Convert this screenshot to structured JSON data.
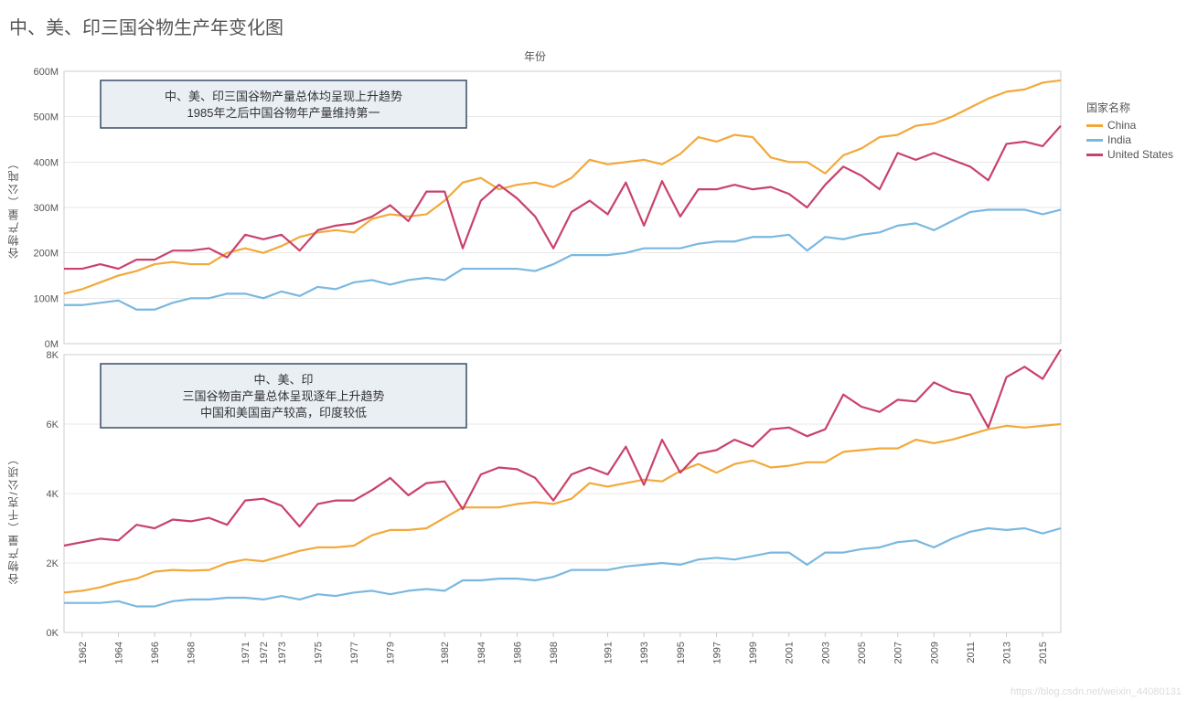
{
  "title": "中、美、印三国谷物生产年变化图",
  "x_axis_label": "年份",
  "legend_title": "国家名称",
  "watermark": "https://blog.csdn.net/weixin_44080131",
  "colors": {
    "china": "#f2a93b",
    "india": "#7ab8e0",
    "us": "#c9426b",
    "grid": "#d0d0d0",
    "border": "#cccccc",
    "annot_border": "#3a4d66",
    "annot_fill": "#eaeff4",
    "background": "#ffffff"
  },
  "series_labels": {
    "china": "China",
    "india": "India",
    "us": "United States"
  },
  "chart1": {
    "ylabel": "谷物产量（公吨）",
    "ylim": [
      0,
      600
    ],
    "ytick_step": 100,
    "ytick_suffix": "M",
    "years": [
      1961,
      1962,
      1963,
      1964,
      1965,
      1966,
      1967,
      1968,
      1969,
      1970,
      1971,
      1972,
      1973,
      1974,
      1975,
      1976,
      1977,
      1978,
      1979,
      1980,
      1981,
      1982,
      1983,
      1984,
      1985,
      1986,
      1987,
      1988,
      1989,
      1990,
      1991,
      1992,
      1993,
      1994,
      1995,
      1996,
      1997,
      1998,
      1999,
      2000,
      2001,
      2002,
      2003,
      2004,
      2005,
      2006,
      2007,
      2008,
      2009,
      2010,
      2011,
      2012,
      2013,
      2014,
      2015,
      2016
    ],
    "china": [
      110,
      120,
      135,
      150,
      160,
      175,
      180,
      175,
      175,
      200,
      210,
      200,
      215,
      235,
      245,
      250,
      245,
      275,
      285,
      280,
      285,
      315,
      355,
      365,
      340,
      350,
      355,
      345,
      365,
      405,
      395,
      400,
      405,
      395,
      418,
      455,
      445,
      460,
      455,
      410,
      400,
      400,
      375,
      415,
      430,
      455,
      460,
      480,
      485,
      500,
      520,
      540,
      555,
      560,
      575,
      580
    ],
    "india": [
      85,
      85,
      90,
      95,
      75,
      75,
      90,
      100,
      100,
      110,
      110,
      100,
      115,
      105,
      125,
      120,
      135,
      140,
      130,
      140,
      145,
      140,
      165,
      165,
      165,
      165,
      160,
      175,
      195,
      195,
      195,
      200,
      210,
      210,
      210,
      220,
      225,
      225,
      235,
      235,
      240,
      205,
      235,
      230,
      240,
      245,
      260,
      265,
      250,
      270,
      290,
      295,
      295,
      295,
      285,
      295
    ],
    "us": [
      165,
      165,
      175,
      165,
      185,
      185,
      205,
      205,
      210,
      190,
      240,
      230,
      240,
      205,
      250,
      260,
      265,
      280,
      305,
      270,
      335,
      335,
      210,
      315,
      350,
      320,
      280,
      210,
      290,
      315,
      285,
      355,
      260,
      358,
      280,
      340,
      340,
      350,
      340,
      345,
      330,
      300,
      350,
      390,
      370,
      340,
      420,
      405,
      420,
      405,
      390,
      360,
      440,
      445,
      435,
      480
    ],
    "annotation": {
      "line1": "中、美、印三国谷物产量总体均呈现上升趋势",
      "line2": "1985年之后中国谷物年产量维持第一"
    }
  },
  "chart2": {
    "ylabel": "谷物产量（千克/公顷）",
    "ylim": [
      0,
      8
    ],
    "ytick_step": 2,
    "ytick_suffix": "K",
    "years": [
      1961,
      1962,
      1963,
      1964,
      1965,
      1966,
      1967,
      1968,
      1969,
      1970,
      1971,
      1972,
      1973,
      1974,
      1975,
      1976,
      1977,
      1978,
      1979,
      1980,
      1981,
      1982,
      1983,
      1984,
      1985,
      1986,
      1987,
      1988,
      1989,
      1990,
      1991,
      1992,
      1993,
      1994,
      1995,
      1996,
      1997,
      1998,
      1999,
      2000,
      2001,
      2002,
      2003,
      2004,
      2005,
      2006,
      2007,
      2008,
      2009,
      2010,
      2011,
      2012,
      2013,
      2014,
      2015,
      2016
    ],
    "china": [
      1.15,
      1.2,
      1.3,
      1.45,
      1.55,
      1.75,
      1.8,
      1.78,
      1.8,
      2.0,
      2.1,
      2.05,
      2.2,
      2.35,
      2.45,
      2.45,
      2.5,
      2.8,
      2.95,
      2.95,
      3.0,
      3.3,
      3.6,
      3.6,
      3.6,
      3.7,
      3.75,
      3.7,
      3.85,
      4.3,
      4.2,
      4.3,
      4.4,
      4.35,
      4.65,
      4.85,
      4.6,
      4.85,
      4.95,
      4.75,
      4.8,
      4.9,
      4.9,
      5.2,
      5.25,
      5.3,
      5.3,
      5.55,
      5.45,
      5.55,
      5.7,
      5.85,
      5.95,
      5.9,
      5.95,
      6.0
    ],
    "india": [
      0.85,
      0.85,
      0.85,
      0.9,
      0.75,
      0.75,
      0.9,
      0.95,
      0.95,
      1.0,
      1.0,
      0.95,
      1.05,
      0.95,
      1.1,
      1.05,
      1.15,
      1.2,
      1.1,
      1.2,
      1.25,
      1.2,
      1.5,
      1.5,
      1.55,
      1.55,
      1.5,
      1.6,
      1.8,
      1.8,
      1.8,
      1.9,
      1.95,
      2.0,
      1.95,
      2.1,
      2.15,
      2.1,
      2.2,
      2.3,
      2.3,
      1.95,
      2.3,
      2.3,
      2.4,
      2.45,
      2.6,
      2.65,
      2.45,
      2.7,
      2.9,
      3.0,
      2.95,
      3.0,
      2.85,
      3.0
    ],
    "us": [
      2.5,
      2.6,
      2.7,
      2.65,
      3.1,
      3.0,
      3.25,
      3.2,
      3.3,
      3.1,
      3.8,
      3.85,
      3.65,
      3.05,
      3.7,
      3.8,
      3.8,
      4.1,
      4.45,
      3.95,
      4.3,
      4.35,
      3.55,
      4.55,
      4.75,
      4.7,
      4.45,
      3.8,
      4.55,
      4.75,
      4.55,
      5.35,
      4.25,
      5.55,
      4.6,
      5.15,
      5.25,
      5.55,
      5.35,
      5.85,
      5.9,
      5.65,
      5.85,
      6.85,
      6.5,
      6.35,
      6.7,
      6.65,
      7.2,
      6.95,
      6.85,
      5.9,
      7.35,
      7.65,
      7.3,
      8.15
    ],
    "annotation": {
      "line1": "中、美、印",
      "line2": "三国谷物亩产量总体呈现逐年上升趋势",
      "line3": "中国和美国亩产较高，印度较低"
    }
  },
  "xtick_years": [
    1962,
    1964,
    1966,
    1968,
    1971,
    1972,
    1973,
    1975,
    1977,
    1979,
    1982,
    1984,
    1986,
    1988,
    1991,
    1993,
    1995,
    1997,
    1999,
    2001,
    2003,
    2005,
    2007,
    2009,
    2011,
    2013,
    2015
  ]
}
